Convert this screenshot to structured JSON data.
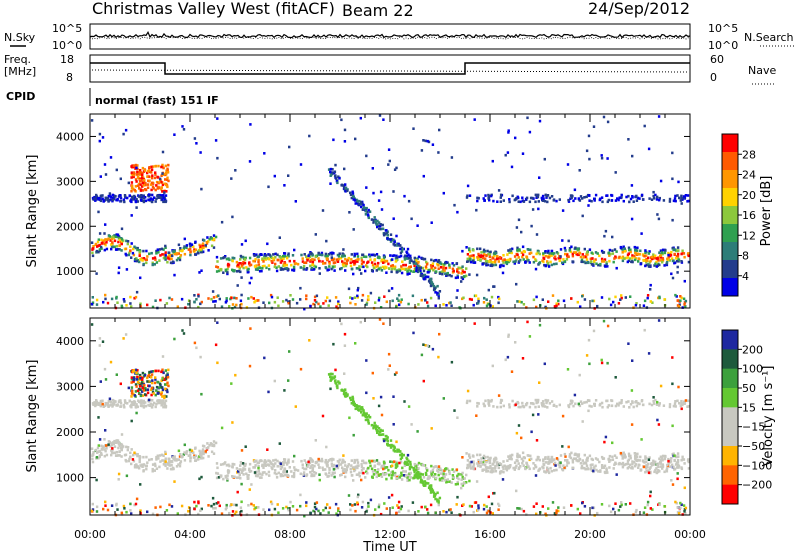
{
  "header": {
    "title": "Christmas Valley West (fitACF)",
    "beam": "Beam 22",
    "date": "24/Sep/2012"
  },
  "sky_panel": {
    "left_label": "N.Sky",
    "right_label": "N.Search",
    "ticks": [
      "10^5",
      "10^0"
    ]
  },
  "freq_panel": {
    "left_label_1": "Freq.",
    "left_label_2": "[MHz]",
    "right_label": "Nave",
    "left_ticks": [
      "18",
      "8"
    ],
    "right_ticks": [
      "60",
      "0"
    ],
    "freq_steps": [
      {
        "from": 0,
        "to": 3,
        "level": "high"
      },
      {
        "from": 3,
        "to": 15,
        "level": "low"
      },
      {
        "from": 15,
        "to": 24,
        "level": "high"
      }
    ]
  },
  "cpid": {
    "label": "CPID",
    "value": "normal (fast) 151 IF"
  },
  "chart_data": [
    {
      "type": "heatmap",
      "ylabel": "Slant Range [km]",
      "yticks": [
        1000,
        2000,
        3000,
        4000
      ],
      "ylim": [
        180,
        4500
      ],
      "xlim": [
        0,
        24
      ],
      "colorbar": {
        "label": "Power [dB]",
        "ticks": [
          "28",
          "24",
          "20",
          "16",
          "12",
          "8",
          "4"
        ],
        "colors": [
          "#ff0000",
          "#ff5a00",
          "#ff9600",
          "#ffd200",
          "#8cc83c",
          "#2fa050",
          "#2d7d78",
          "#233c8c",
          "#0000e6"
        ]
      }
    },
    {
      "type": "heatmap",
      "ylabel": "Slant Range [km]",
      "yticks": [
        1000,
        2000,
        3000,
        4000
      ],
      "ylim": [
        180,
        4500
      ],
      "xlim": [
        0,
        24
      ],
      "xlabel": "Time UT",
      "xticks": [
        "00:00",
        "04:00",
        "08:00",
        "12:00",
        "16:00",
        "20:00",
        "00:00"
      ],
      "colorbar": {
        "label": "Velocity [m s⁻¹]",
        "ticks": [
          "200",
          "100",
          "50",
          "15",
          "−15",
          "−50",
          "−100",
          "−200"
        ],
        "colors": [
          "#1e28a0",
          "#1e5a3c",
          "#3ca03c",
          "#64c832",
          "#c8c8c0",
          "#c8c8c0",
          "#ffb400",
          "#ff6400",
          "#ff0000"
        ]
      }
    }
  ]
}
